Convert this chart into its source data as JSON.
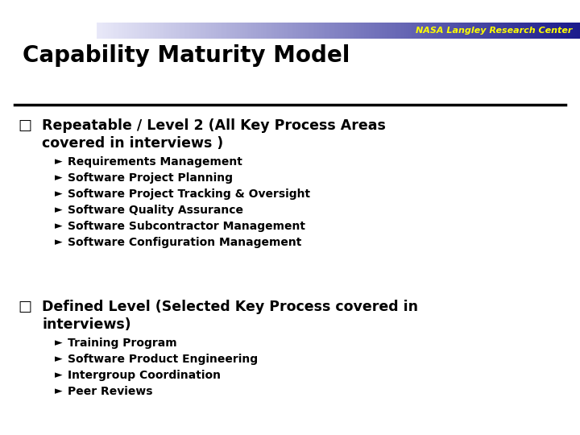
{
  "title": "Capability Maturity Model",
  "header_text": "NASA Langley Research Center",
  "header_text_color": "#ffff00",
  "bg_color": "#ffffff",
  "title_color": "#000000",
  "title_fontsize": 20,
  "sections": [
    {
      "heading_line1": "Repeatable / Level 2 (All Key Process Areas",
      "heading_line2": "covered in interviews )",
      "items": [
        "Requirements Management",
        "Software Project Planning",
        "Software Project Tracking & Oversight",
        "Software Quality Assurance",
        "Software Subcontractor Management",
        "Software Configuration Management"
      ]
    },
    {
      "heading_line1": "Defined Level (Selected Key Process covered in",
      "heading_line2": "interviews)",
      "items": [
        "Training Program",
        "Software Product Engineering",
        "Intergroup Coordination",
        "Peer Reviews"
      ]
    }
  ]
}
